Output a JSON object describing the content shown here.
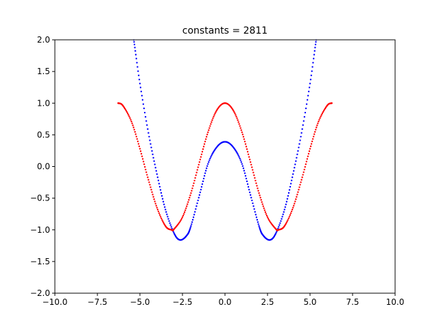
{
  "chart_data": {
    "type": "scatter",
    "title": "constants = 2811",
    "xlabel": "",
    "ylabel": "",
    "xlim": [
      -10,
      10
    ],
    "ylim": [
      -2,
      2
    ],
    "grid": false,
    "x_ticks": [
      -10,
      -7.5,
      -5,
      -2.5,
      0,
      2.5,
      5,
      7.5,
      10
    ],
    "x_tick_labels": [
      "−10.0",
      "−7.5",
      "−5.0",
      "−2.5",
      "0.0",
      "2.5",
      "5.0",
      "7.5",
      "10.0"
    ],
    "y_ticks": [
      -2,
      -1.5,
      -1,
      -0.5,
      0,
      0.5,
      1,
      1.5,
      2
    ],
    "y_tick_labels": [
      "−2.0",
      "−1.5",
      "−1.0",
      "−0.5",
      "0.0",
      "0.5",
      "1.0",
      "1.5",
      "2.0"
    ],
    "series": [
      {
        "color": "#0000ff",
        "x": [
          -5.36,
          -5.0,
          -4.5,
          -4.0,
          -3.5,
          -3.0,
          -2.64,
          -2.25,
          -2.0,
          -1.5,
          -1.0,
          -0.5,
          0.0,
          0.5,
          1.0,
          1.5,
          2.0,
          2.25,
          2.64,
          3.0,
          3.5,
          4.0,
          4.5,
          5.0,
          5.36
        ],
        "y": [
          2.0,
          1.31,
          0.53,
          -0.12,
          -0.68,
          -1.05,
          -1.16,
          -1.09,
          -0.94,
          -0.45,
          0.04,
          0.3,
          0.39,
          0.3,
          0.04,
          -0.45,
          -0.94,
          -1.09,
          -1.16,
          -1.05,
          -0.68,
          -0.12,
          0.53,
          1.31,
          2.0
        ]
      },
      {
        "color": "#ff0000",
        "x": [
          -6.28,
          -6.0,
          -5.5,
          -5.0,
          -4.5,
          -4.0,
          -3.5,
          -3.14,
          -3.0,
          -2.5,
          -2.0,
          -1.5,
          -1.0,
          -0.5,
          0.0,
          0.5,
          1.0,
          1.5,
          2.0,
          2.5,
          3.0,
          3.14,
          3.5,
          4.0,
          4.5,
          5.0,
          5.5,
          6.0,
          6.28
        ],
        "y": [
          1.0,
          0.96,
          0.71,
          0.28,
          -0.21,
          -0.65,
          -0.94,
          -1.0,
          -0.99,
          -0.8,
          -0.42,
          0.07,
          0.54,
          0.88,
          1.0,
          0.88,
          0.54,
          0.07,
          -0.42,
          -0.8,
          -0.99,
          -1.0,
          -0.94,
          -0.65,
          -0.21,
          0.28,
          0.71,
          0.96,
          1.0
        ]
      }
    ]
  }
}
